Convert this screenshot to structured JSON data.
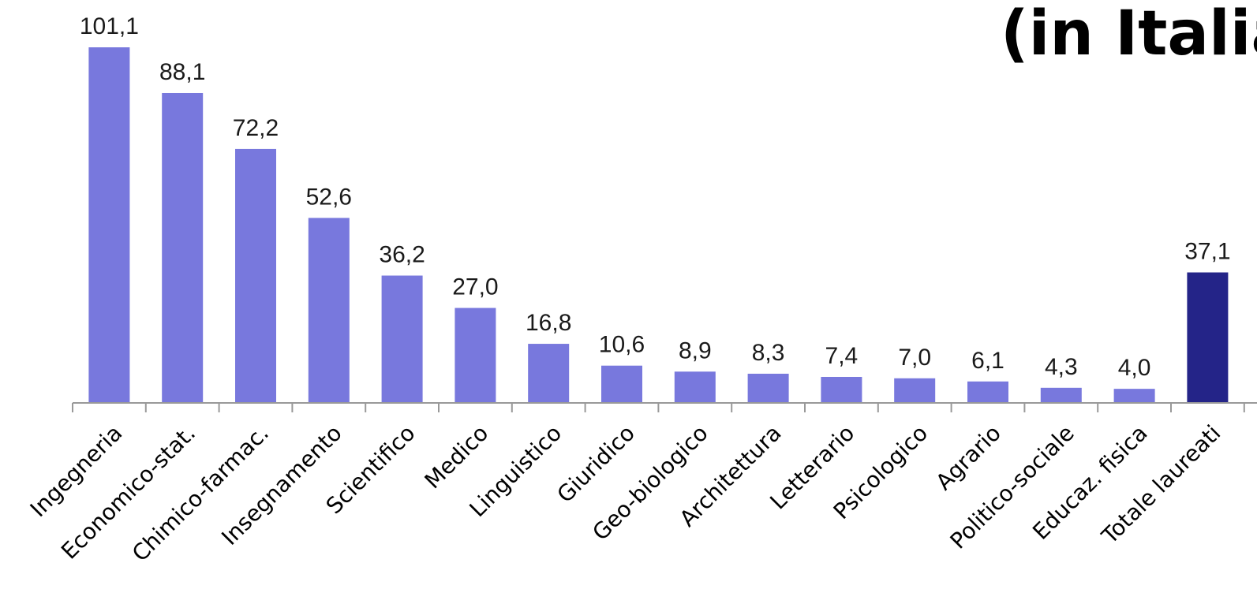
{
  "title": "(in Italia",
  "chart_data": {
    "type": "bar",
    "categories": [
      "Ingegneria",
      "Economico-stat.",
      "Chimico-farmac.",
      "Insegnamento",
      "Scientifico",
      "Medico",
      "Linguistico",
      "Giuridico",
      "Geo-biologico",
      "Architettura",
      "Letterario",
      "Psicologico",
      "Agrario",
      "Politico-sociale",
      "Educaz. fisica",
      "Totale laureati"
    ],
    "values": [
      101.1,
      88.1,
      72.2,
      52.6,
      36.2,
      27.0,
      16.8,
      10.6,
      8.9,
      8.3,
      7.4,
      7.0,
      6.1,
      4.3,
      4.0,
      37.1
    ],
    "value_labels": [
      "101,1",
      "88,1",
      "72,2",
      "52,6",
      "36,2",
      "27,0",
      "16,8",
      "10,6",
      "8,9",
      "8,3",
      "7,4",
      "7,0",
      "6,1",
      "4,3",
      "4,0",
      "37,1"
    ],
    "highlight_index": 15,
    "colors": {
      "bar": "#7878dd",
      "highlight": "#242488",
      "axis": "#999999"
    },
    "ylim": [
      0,
      101.1
    ],
    "grid": false,
    "legend": "none"
  }
}
